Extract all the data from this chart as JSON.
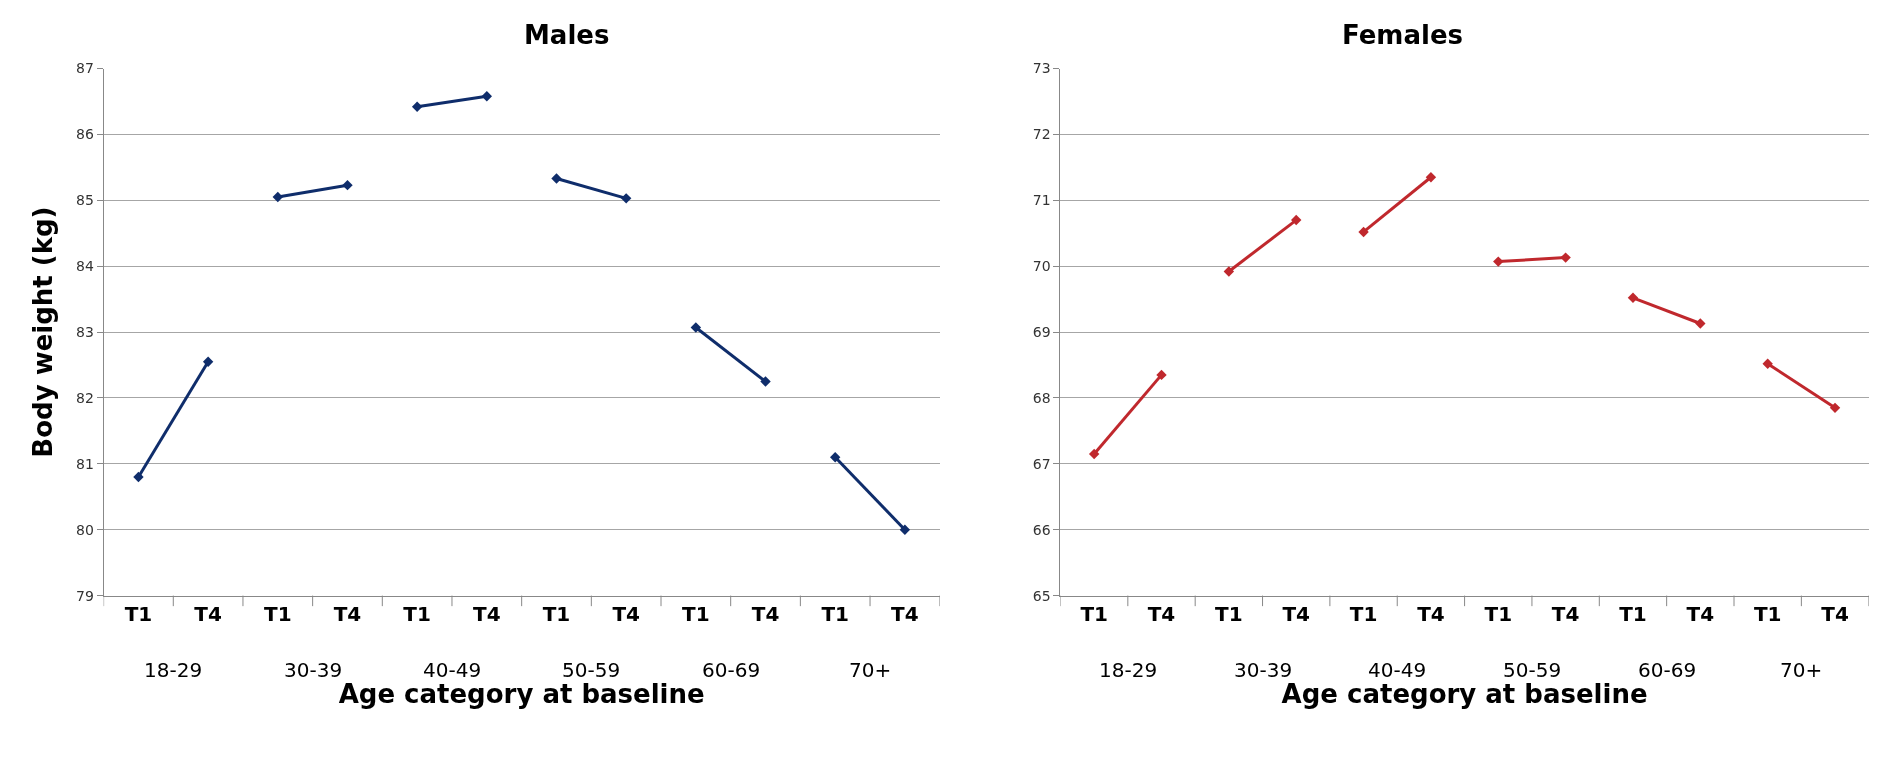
{
  "chart_data": [
    {
      "type": "line",
      "title": "Males",
      "xlabel": "Age category at baseline",
      "ylabel": "Body weight (kg)",
      "categories": [
        "T1",
        "T4",
        "T1",
        "T4",
        "T1",
        "T4",
        "T1",
        "T4",
        "T1",
        "T4",
        "T1",
        "T4"
      ],
      "series": [
        {
          "color": "#0f2d6b",
          "values": [
            80.8,
            82.55,
            null,
            null,
            null,
            null,
            null,
            null,
            null,
            null,
            null,
            null
          ]
        },
        {
          "color": "#0f2d6b",
          "values": [
            null,
            null,
            85.05,
            85.23,
            null,
            null,
            null,
            null,
            null,
            null,
            null,
            null
          ]
        },
        {
          "color": "#0f2d6b",
          "values": [
            null,
            null,
            null,
            null,
            86.42,
            86.58,
            null,
            null,
            null,
            null,
            null,
            null
          ]
        },
        {
          "color": "#0f2d6b",
          "values": [
            null,
            null,
            null,
            null,
            null,
            null,
            85.33,
            85.03,
            null,
            null,
            null,
            null
          ]
        },
        {
          "color": "#0f2d6b",
          "values": [
            null,
            null,
            null,
            null,
            null,
            null,
            null,
            null,
            83.07,
            82.25,
            null,
            null
          ]
        },
        {
          "color": "#0f2d6b",
          "values": [
            null,
            null,
            null,
            null,
            null,
            null,
            null,
            null,
            null,
            null,
            81.1,
            80.0
          ]
        }
      ],
      "annotations": [
        "18-29",
        "30-39",
        "40-49",
        "50-59",
        "60-69",
        "70+"
      ],
      "ylim": [
        79,
        87
      ],
      "yticks": [
        79,
        80,
        81,
        82,
        83,
        84,
        85,
        86,
        87
      ],
      "grid": "y",
      "marker": "diamond",
      "line_style": "solid"
    },
    {
      "type": "line",
      "title": "Females",
      "xlabel": "Age category at baseline",
      "categories": [
        "T1",
        "T4",
        "T1",
        "T4",
        "T1",
        "T4",
        "T1",
        "T4",
        "T1",
        "T4",
        "T1",
        "T4"
      ],
      "series": [
        {
          "color": "#c0282d",
          "values": [
            67.15,
            68.35,
            null,
            null,
            null,
            null,
            null,
            null,
            null,
            null,
            null,
            null
          ]
        },
        {
          "color": "#c0282d",
          "values": [
            null,
            null,
            69.92,
            70.7,
            null,
            null,
            null,
            null,
            null,
            null,
            null,
            null
          ]
        },
        {
          "color": "#c0282d",
          "values": [
            null,
            null,
            null,
            null,
            70.52,
            71.35,
            null,
            null,
            null,
            null,
            null,
            null
          ]
        },
        {
          "color": "#c0282d",
          "values": [
            null,
            null,
            null,
            null,
            null,
            null,
            70.07,
            70.13,
            null,
            null,
            null,
            null
          ]
        },
        {
          "color": "#c0282d",
          "values": [
            null,
            null,
            null,
            null,
            null,
            null,
            null,
            null,
            69.52,
            69.13,
            null,
            null
          ]
        },
        {
          "color": "#c0282d",
          "values": [
            null,
            null,
            null,
            null,
            null,
            null,
            null,
            null,
            null,
            null,
            68.52,
            67.85
          ]
        }
      ],
      "annotations": [
        "18-29",
        "30-39",
        "40-49",
        "50-59",
        "60-69",
        "70+"
      ],
      "ylim": [
        65,
        73
      ],
      "yticks": [
        65,
        66,
        67,
        68,
        69,
        70,
        71,
        72,
        73
      ],
      "grid": "y",
      "marker": "diamond",
      "line_style": "solid"
    }
  ]
}
